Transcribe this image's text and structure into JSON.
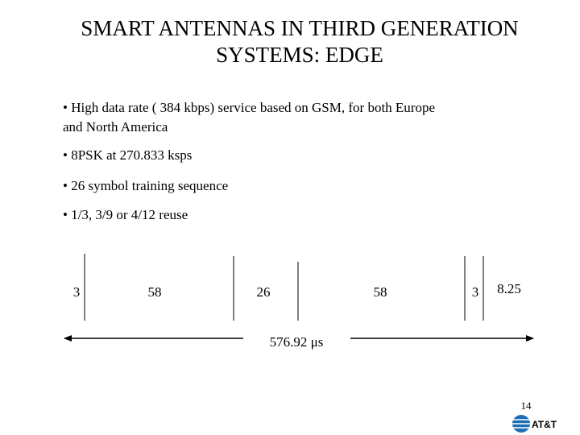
{
  "header": {
    "title_lines": [
      "SMART ANTENNAS IN THIRD GENERATION",
      "SYSTEMS: EDGE"
    ]
  },
  "bullets": [
    [
      "• High data rate ( 384 kbps) service based on GSM, for both Europe",
      "and North America"
    ],
    [
      "• 8PSK at 270.833 ksps"
    ],
    [
      "• 26 symbol training sequence"
    ],
    [
      "• 1/3, 3/9 or 4/12 reuse"
    ]
  ],
  "burst": {
    "fields": [
      "3",
      "58",
      "26",
      "58",
      "3",
      "8.25"
    ],
    "duration": "576.92 μs"
  },
  "footer": {
    "page_number": "14",
    "logo": "AT&T"
  }
}
